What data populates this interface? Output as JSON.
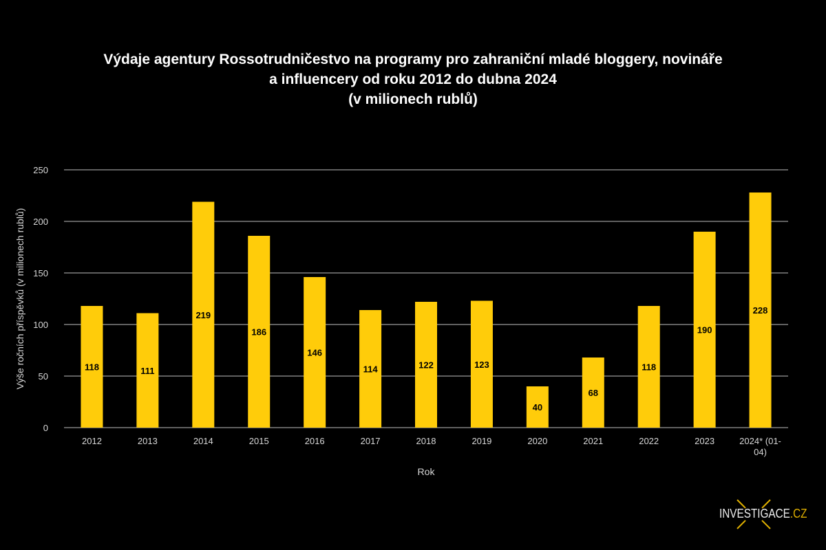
{
  "chart_data": {
    "type": "bar",
    "title_lines": [
      "Výdaje agentury Rossotrudničestvo na programy pro zahraniční mladé bloggery, novináře",
      "a influencery od roku 2012 do dubna 2024",
      "(v milionech rublů)"
    ],
    "xlabel": "Rok",
    "ylabel": "Výše ročních příspěvků (v milionech rublů)",
    "ylim": [
      0,
      250
    ],
    "yticks": [
      0,
      50,
      100,
      150,
      200,
      250
    ],
    "grid": true,
    "categories": [
      "2012",
      "2013",
      "2014",
      "2015",
      "2016",
      "2017",
      "2018",
      "2019",
      "2020",
      "2021",
      "2022",
      "2023",
      "2024* (01-04)"
    ],
    "category_lines": [
      [
        "2012"
      ],
      [
        "2013"
      ],
      [
        "2014"
      ],
      [
        "2015"
      ],
      [
        "2016"
      ],
      [
        "2017"
      ],
      [
        "2018"
      ],
      [
        "2019"
      ],
      [
        "2020"
      ],
      [
        "2021"
      ],
      [
        "2022"
      ],
      [
        "2023"
      ],
      [
        "2024* (01-",
        "04)"
      ]
    ],
    "values": [
      118,
      111,
      219,
      186,
      146,
      114,
      122,
      123,
      40,
      68,
      118,
      190,
      228
    ],
    "bar_color": "#FFCC0A",
    "background": "#000000"
  },
  "logo": {
    "text": "INVESTIGACE",
    "suffix": ".CZ",
    "accent": "#E0B000"
  }
}
